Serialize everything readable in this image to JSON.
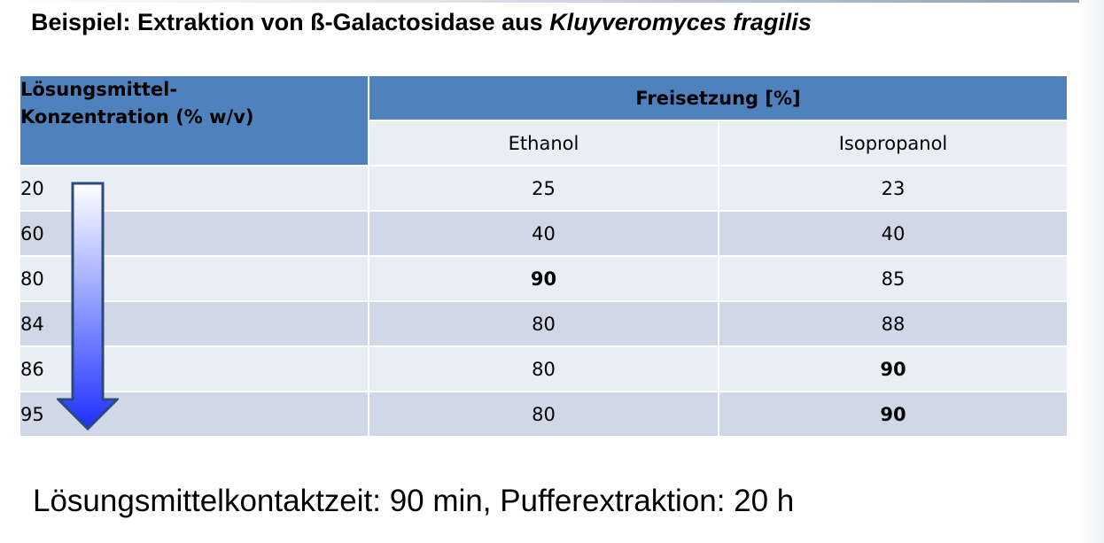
{
  "title": {
    "prefix": "Beispiel: Extraktion von ß-Galactosidase aus ",
    "italic": "Kluyveromyces fragilis"
  },
  "table": {
    "header_left_line1": "Lösungsmittel-",
    "header_left_line2": "Konzentration (% w/v)",
    "header_group": "Freisetzung [%]",
    "col_ethanol": "Ethanol",
    "col_isopropanol": "Isopropanol",
    "rows": [
      {
        "conc": "20",
        "ethanol": "25",
        "isopropanol": "23",
        "ethanol_highlight": false,
        "isopropanol_highlight": false
      },
      {
        "conc": "60",
        "ethanol": "40",
        "isopropanol": "40",
        "ethanol_highlight": false,
        "isopropanol_highlight": false
      },
      {
        "conc": "80",
        "ethanol": "90",
        "isopropanol": "85",
        "ethanol_highlight": true,
        "isopropanol_highlight": false
      },
      {
        "conc": "84",
        "ethanol": "80",
        "isopropanol": "88",
        "ethanol_highlight": false,
        "isopropanol_highlight": false
      },
      {
        "conc": "86",
        "ethanol": "80",
        "isopropanol": "90",
        "ethanol_highlight": false,
        "isopropanol_highlight": true
      },
      {
        "conc": "95",
        "ethanol": "80",
        "isopropanol": "90",
        "ethanol_highlight": false,
        "isopropanol_highlight": true
      }
    ]
  },
  "colors": {
    "header_blue": "#4f81bd",
    "row_light": "#e9edf4",
    "row_dark": "#d0d8e8",
    "highlight": "#1a1aff"
  },
  "arrow_icon": "down-arrow-icon",
  "footnote": "Lösungsmittelkontaktzeit: 90 min, Pufferextraktion: 20 h"
}
